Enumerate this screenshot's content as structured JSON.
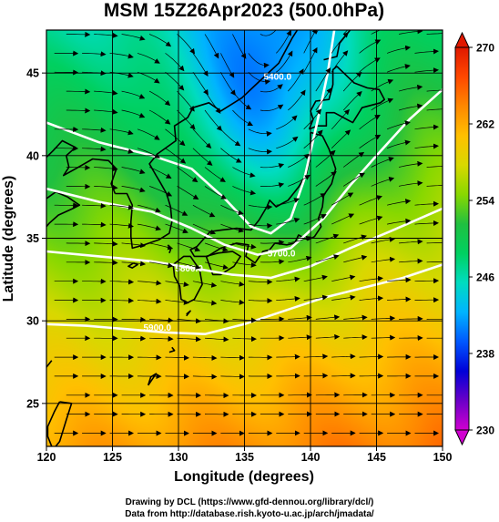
{
  "title": "MSM 15Z26Apr2023 (500.0hPa)",
  "xlabel": "Longitude (degrees)",
  "ylabel": "Latitude  (degrees)",
  "x_ticks": [
    "120",
    "125",
    "130",
    "135",
    "140",
    "145",
    "150"
  ],
  "y_ticks": [
    "25",
    "30",
    "35",
    "40",
    "45"
  ],
  "colorbar": {
    "labels": [
      "230",
      "238",
      "246",
      "254",
      "262",
      "270"
    ],
    "colors": [
      "#d000d0",
      "#6a00c8",
      "#0000d8",
      "#0058ff",
      "#00b4ff",
      "#00dcc0",
      "#00d060",
      "#20c040",
      "#88d800",
      "#d8d800",
      "#ffc000",
      "#ff8800",
      "#ff4800",
      "#e01800"
    ]
  },
  "contour_labels": [
    "5400.0",
    "5700.0",
    "5800.0",
    "5900.0"
  ],
  "credits": {
    "line1": "Drawing by DCL (https://www.gfd-dennou.org/library/dcl/)",
    "line2": "Data from http://database.rish.kyoto-u.ac.jp/arch/jmadata/"
  },
  "chart_data": {
    "type": "heatmap",
    "title": "MSM 15Z26Apr2023 (500.0hPa)",
    "xlabel": "Longitude (degrees)",
    "ylabel": "Latitude  (degrees)",
    "xlim": [
      120,
      150
    ],
    "ylim": [
      22.4,
      47.6
    ],
    "x_ticks": [
      120,
      125,
      130,
      135,
      140,
      145,
      150
    ],
    "y_ticks": [
      25,
      30,
      35,
      40,
      45
    ],
    "color_range": [
      230,
      270
    ],
    "colorbar_ticks": [
      230,
      238,
      246,
      254,
      262,
      270
    ],
    "grid": true,
    "overlays": [
      "wind streamlines",
      "geopotential height contours",
      "coastlines"
    ],
    "trough": {
      "lon": 136.5,
      "lat": 37.5
    }
  }
}
